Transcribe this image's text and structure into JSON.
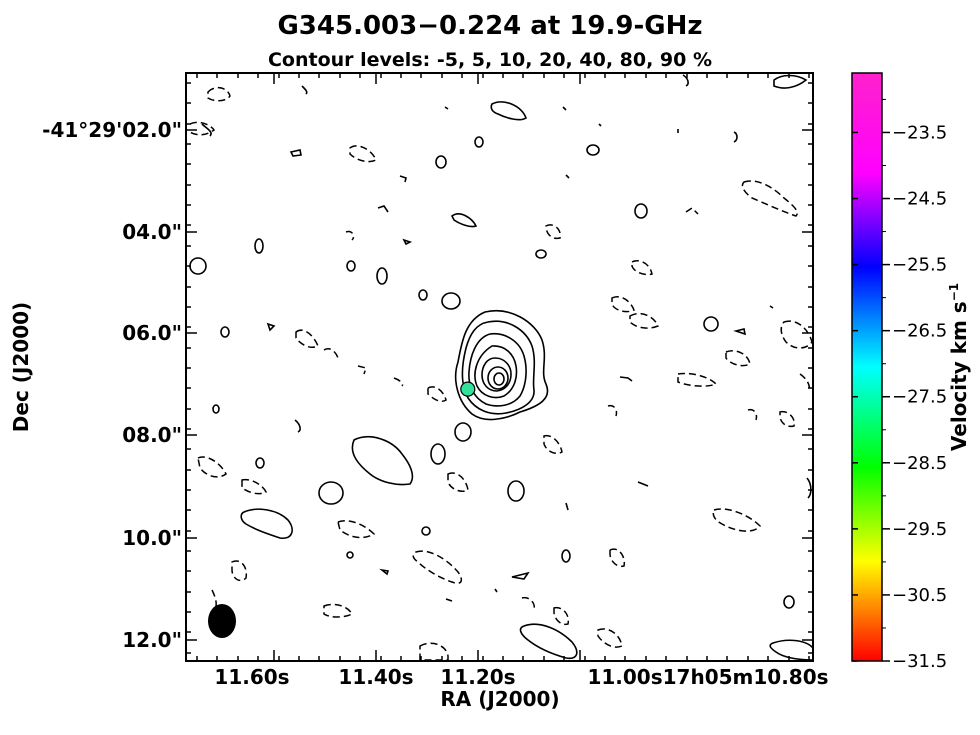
{
  "chart_data": {
    "type": "contour",
    "title": "G345.003−0.224 at 19.9-GHz",
    "subtitle": "Contour levels: -5, 5, 10, 20, 40, 80, 90 %",
    "contour_levels_percent": [
      -5,
      5,
      10,
      20,
      40,
      80,
      90
    ],
    "xlabel": "RA (J2000)",
    "ylabel": "Dec (J2000)",
    "x_tick_labels": [
      "11.60s",
      "11.40s",
      "11.20s",
      "11.00s17h05m10.80s"
    ],
    "y_tick_labels": [
      "-41°29'02.0\"",
      "04.0\"",
      "06.0\"",
      "08.0\"",
      "10.0\"",
      "12.0\""
    ],
    "colorbar": {
      "label": "Velocity km s",
      "label_superscript": "−1",
      "ticks": [
        "−23.5",
        "−24.5",
        "−25.5",
        "−26.5",
        "−27.5",
        "−28.5",
        "−29.5",
        "−30.5",
        "−31.5"
      ],
      "range": [
        -31.5,
        -22.6
      ],
      "colormap": "hsv (red at bottom, magenta at top)"
    },
    "maser_spots": [
      {
        "ra_offset_s": 11.22,
        "dec_arcsec": 7.1,
        "velocity": -27.0,
        "color": "#33e29a"
      }
    ],
    "beam": {
      "shape": "ellipse",
      "color": "#000000"
    }
  }
}
